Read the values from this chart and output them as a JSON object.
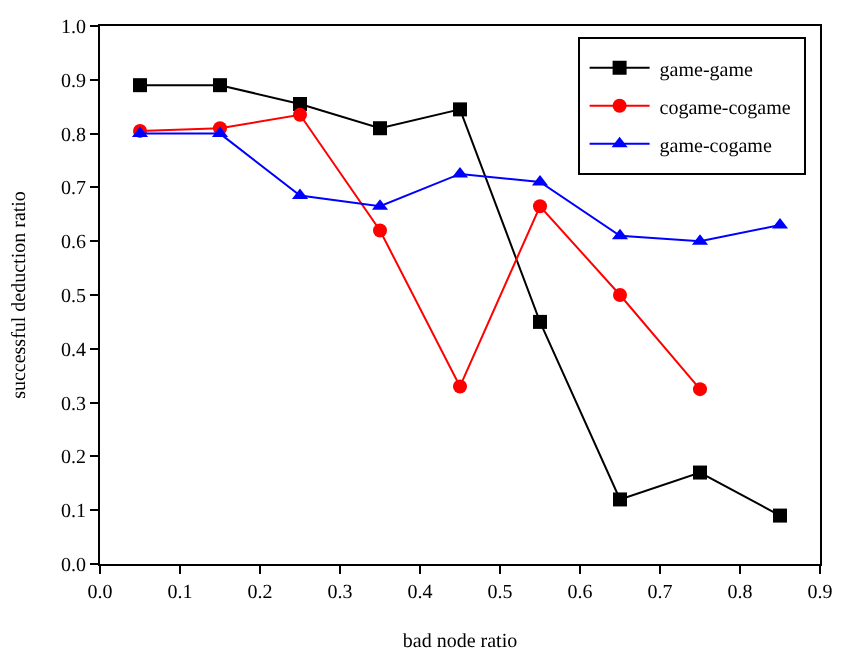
{
  "chart_data": {
    "type": "line",
    "xlabel": "bad node ratio",
    "ylabel": "successful deduction ratio",
    "x": [
      0.05,
      0.15,
      0.25,
      0.35,
      0.45,
      0.55,
      0.65,
      0.75,
      0.85
    ],
    "series": [
      {
        "name": "game-game",
        "color": "#000000",
        "marker": "square",
        "values": [
          0.89,
          0.89,
          0.855,
          0.81,
          0.845,
          0.45,
          0.12,
          0.17,
          0.09
        ]
      },
      {
        "name": "cogame-cogame",
        "color": "#ff0000",
        "marker": "circle",
        "values": [
          0.805,
          0.81,
          0.835,
          0.62,
          0.33,
          0.665,
          0.5,
          0.325,
          null
        ]
      },
      {
        "name": "game-cogame",
        "color": "#0000ff",
        "marker": "triangle",
        "values": [
          0.8,
          0.8,
          0.685,
          0.665,
          0.725,
          0.71,
          0.61,
          0.6,
          0.63
        ]
      }
    ],
    "xlim": [
      0.0,
      0.9
    ],
    "xticks": [
      {
        "value": 0,
        "label": "0.0"
      },
      0.1,
      0.2,
      0.3,
      0.4,
      0.5,
      0.6,
      0.7,
      0.8,
      0.9
    ],
    "ylim": [
      0.0,
      1.0
    ],
    "yticks": [
      {
        "value": 0,
        "label": "0.0"
      },
      0.1,
      0.2,
      0.3,
      0.4,
      0.5,
      0.6,
      0.7,
      0.8,
      0.9,
      {
        "value": 1,
        "label": "1.0"
      }
    ],
    "legend": "top right",
    "line_style": "solid"
  }
}
